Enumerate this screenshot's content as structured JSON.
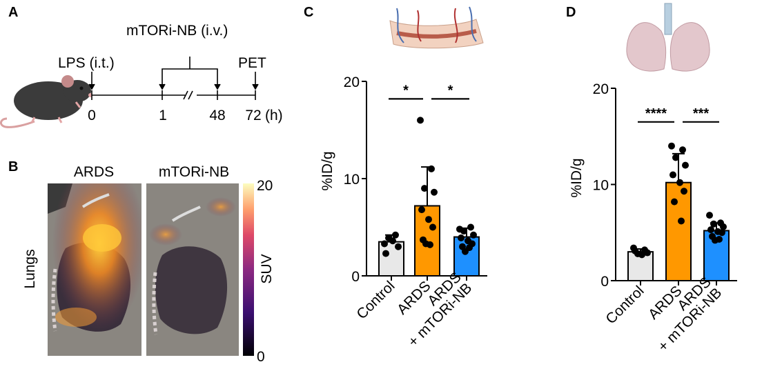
{
  "figure": {
    "panels": {
      "A": {
        "label": "A",
        "dose_label": "mTORi-NB (i.v.)",
        "lps_label": "LPS (i.t.)",
        "pet_label": "PET",
        "ticks": [
          "0",
          "1",
          "48",
          "72"
        ],
        "unit": "(h)"
      },
      "B": {
        "label": "B",
        "col1": "ARDS",
        "col2": "mTORi-NB",
        "row": "Lungs",
        "colorbar_label": "SUV",
        "colorbar_max": "20",
        "colorbar_min": "0"
      },
      "C": {
        "label": "C"
      },
      "D": {
        "label": "D"
      }
    }
  },
  "colors": {
    "control": "#e8e8e8",
    "ards": "#ff9800",
    "treated": "#1e90ff"
  },
  "chart_data": [
    {
      "panel": "C",
      "type": "bar",
      "title": "",
      "xlabel": "",
      "ylabel": "%ID/g",
      "ylim": [
        0,
        20
      ],
      "yticks": [
        0,
        10,
        20
      ],
      "categories": [
        "Control",
        "ARDS",
        "ARDS\n+ mTORi-NB"
      ],
      "values": [
        3.5,
        7.2,
        4.0
      ],
      "error": [
        0.7,
        4.0,
        0.9
      ],
      "points": [
        [
          3.3,
          4.2,
          3.9,
          3.0,
          2.3,
          3.6
        ],
        [
          16.0,
          11.0,
          9.0,
          8.6,
          6.8,
          5.8,
          5.0,
          3.7,
          3.2,
          3.3
        ],
        [
          4.8,
          5.0,
          4.6,
          4.2,
          3.9,
          3.6,
          3.3,
          3.0,
          2.9,
          2.5
        ]
      ],
      "significance": [
        {
          "from": 0,
          "to": 1,
          "label": "*",
          "y": 18.2
        },
        {
          "from": 1,
          "to": 2,
          "label": "*",
          "y": 18.2
        }
      ]
    },
    {
      "panel": "D",
      "type": "bar",
      "title": "",
      "xlabel": "",
      "ylabel": "%ID/g",
      "ylim": [
        0,
        20
      ],
      "yticks": [
        0,
        10,
        20
      ],
      "categories": [
        "Control",
        "ARDS",
        "ARDS\n+ mTORi-NB"
      ],
      "values": [
        3.0,
        10.2,
        5.2
      ],
      "error": [
        0.3,
        3.0,
        0.8
      ],
      "points": [
        [
          3.4,
          3.2,
          2.8,
          2.9,
          3.1,
          2.7
        ],
        [
          14.0,
          13.6,
          12.8,
          12.0,
          11.0,
          10.2,
          9.3,
          8.2,
          6.2
        ],
        [
          6.8,
          6.0,
          5.9,
          5.6,
          5.3,
          5.1,
          5.0,
          4.6,
          4.3,
          4.2
        ]
      ],
      "significance": [
        {
          "from": 0,
          "to": 1,
          "label": "****",
          "y": 16.5
        },
        {
          "from": 1,
          "to": 2,
          "label": "***",
          "y": 16.5
        }
      ]
    }
  ]
}
